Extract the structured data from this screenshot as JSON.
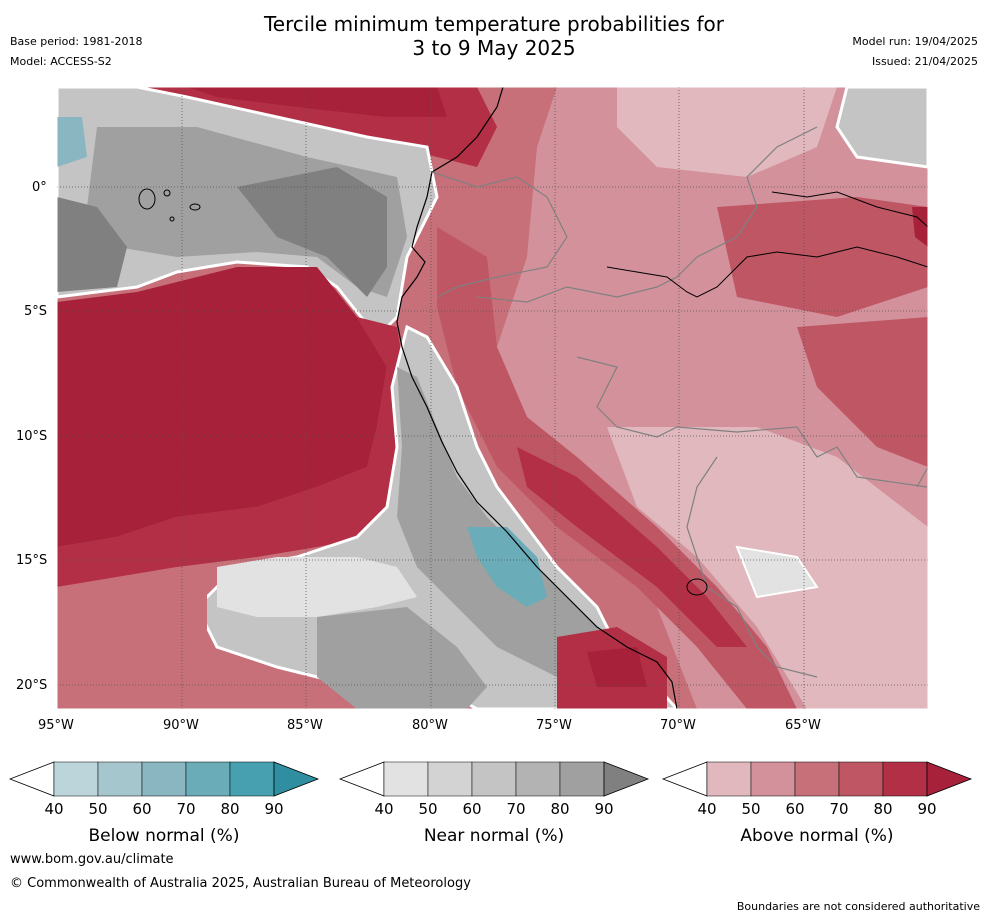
{
  "header": {
    "title_line1": "Tercile minimum temperature probabilities for",
    "title_line2": "3 to 9 May 2025",
    "base_period": "Base period: 1981-2018",
    "model": "Model: ACCESS-S2",
    "model_run": "Model run: 19/04/2025",
    "issued": "Issued: 21/04/2025"
  },
  "map": {
    "lat_labels": [
      "0°",
      "5°S",
      "10°S",
      "15°S",
      "20°S"
    ],
    "lon_labels": [
      "95°W",
      "90°W",
      "85°W",
      "80°W",
      "75°W",
      "70°W",
      "65°W"
    ]
  },
  "legend": {
    "tick_values": [
      "40",
      "50",
      "60",
      "70",
      "80",
      "90"
    ],
    "below": {
      "title": "Below normal (%)",
      "colors": [
        "#bcd5da",
        "#a5c6cd",
        "#8ab6c1",
        "#6aacb8",
        "#47a0b0",
        "#2f8fa1"
      ]
    },
    "near": {
      "title": "Near normal (%)",
      "colors": [
        "#e2e2e2",
        "#d3d3d3",
        "#c4c4c4",
        "#b3b3b3",
        "#a0a0a0",
        "#808080"
      ]
    },
    "above": {
      "title": "Above normal (%)",
      "colors": [
        "#e0b8bd",
        "#d3929b",
        "#c77079",
        "#bf5664",
        "#b22f45",
        "#a8213a"
      ]
    }
  },
  "footer": {
    "url": "www.bom.gov.au/climate",
    "copyright": "© Commonwealth of Australia 2025, Australian Bureau of Meteorology",
    "note": "Boundaries are not considered authoritative"
  }
}
